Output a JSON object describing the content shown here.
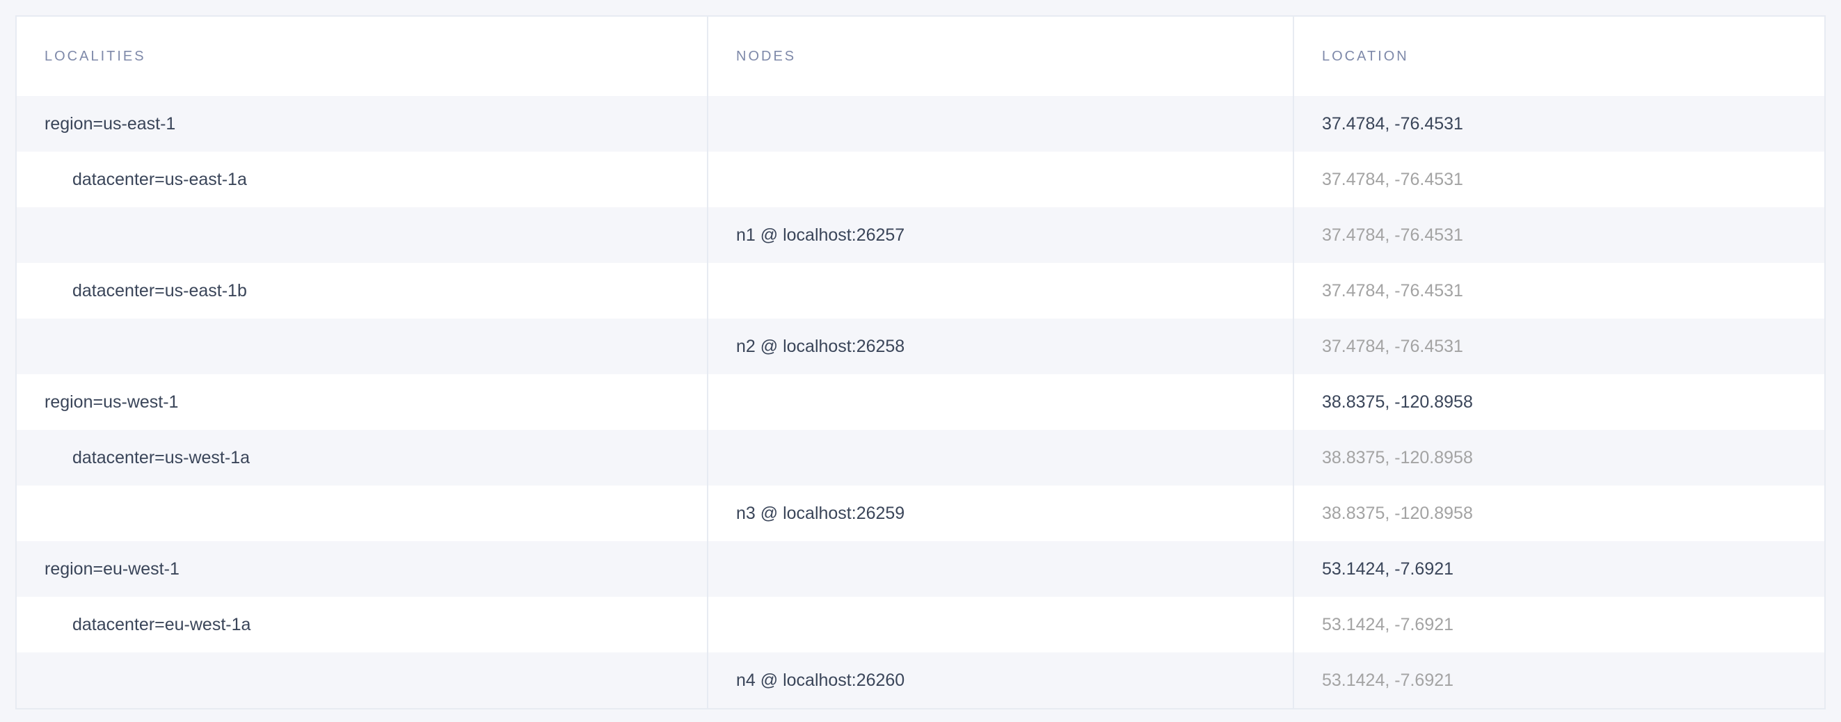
{
  "table": {
    "headers": {
      "localities": "LOCALITIES",
      "nodes": "NODES",
      "location": "LOCATION"
    },
    "rows": [
      {
        "locality": "region=us-east-1",
        "level": "region",
        "node": "",
        "location": "37.4784, -76.4531"
      },
      {
        "locality": "datacenter=us-east-1a",
        "level": "datacenter",
        "node": "",
        "location": "37.4784, -76.4531"
      },
      {
        "locality": "",
        "level": "node",
        "node": "n1 @ localhost:26257",
        "location": "37.4784, -76.4531"
      },
      {
        "locality": "datacenter=us-east-1b",
        "level": "datacenter",
        "node": "",
        "location": "37.4784, -76.4531"
      },
      {
        "locality": "",
        "level": "node",
        "node": "n2 @ localhost:26258",
        "location": "37.4784, -76.4531"
      },
      {
        "locality": "region=us-west-1",
        "level": "region",
        "node": "",
        "location": "38.8375, -120.8958"
      },
      {
        "locality": "datacenter=us-west-1a",
        "level": "datacenter",
        "node": "",
        "location": "38.8375, -120.8958"
      },
      {
        "locality": "",
        "level": "node",
        "node": "n3 @ localhost:26259",
        "location": "38.8375, -120.8958"
      },
      {
        "locality": "region=eu-west-1",
        "level": "region",
        "node": "",
        "location": "53.1424, -7.6921"
      },
      {
        "locality": "datacenter=eu-west-1a",
        "level": "datacenter",
        "node": "",
        "location": "53.1424, -7.6921"
      },
      {
        "locality": "",
        "level": "node",
        "node": "n4 @ localhost:26260",
        "location": "53.1424, -7.6921"
      }
    ]
  }
}
